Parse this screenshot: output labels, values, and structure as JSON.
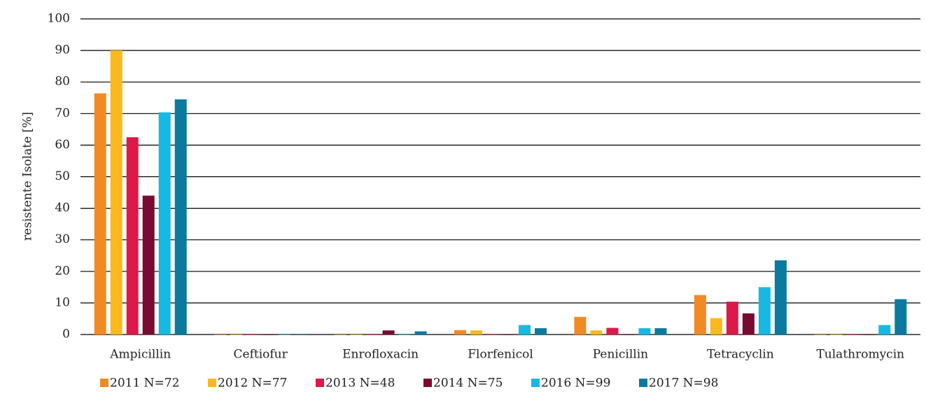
{
  "chart_data": {
    "type": "bar",
    "y_label": "resistente Isolate [%]",
    "categories": [
      "Ampicillin",
      "Ceftiofur",
      "Enrofloxacin",
      "Florfenicol",
      "Penicillin",
      "Tetracyclin",
      "Tulathromycin"
    ],
    "series": [
      {
        "name": "2011 N=72",
        "color": "#f28a23",
        "values": [
          76.4,
          0,
          0,
          1.4,
          5.6,
          12.5,
          0
        ]
      },
      {
        "name": "2012 N=77",
        "color": "#fbb91e",
        "values": [
          90,
          0,
          0,
          1.3,
          1.3,
          5.2,
          0
        ]
      },
      {
        "name": "2013 N=48",
        "color": "#dc1948",
        "values": [
          62.5,
          0,
          0,
          0,
          2.1,
          10.4,
          0
        ]
      },
      {
        "name": "2014 N=75",
        "color": "#7a0a30",
        "values": [
          44,
          0,
          1.3,
          0,
          0,
          6.7,
          0
        ]
      },
      {
        "name": "2016 N=99",
        "color": "#16b9e0",
        "values": [
          70.4,
          0,
          0,
          3.0,
          2.0,
          15,
          3.0
        ]
      },
      {
        "name": "2017 N=98",
        "color": "#0a7a9e",
        "values": [
          74.5,
          0,
          1.0,
          2.0,
          2.0,
          23.5,
          11.2
        ]
      }
    ],
    "ylim": [
      0,
      100
    ],
    "yticks": [
      0,
      10,
      20,
      30,
      40,
      50,
      60,
      70,
      80,
      90,
      100
    ],
    "grid": true
  }
}
